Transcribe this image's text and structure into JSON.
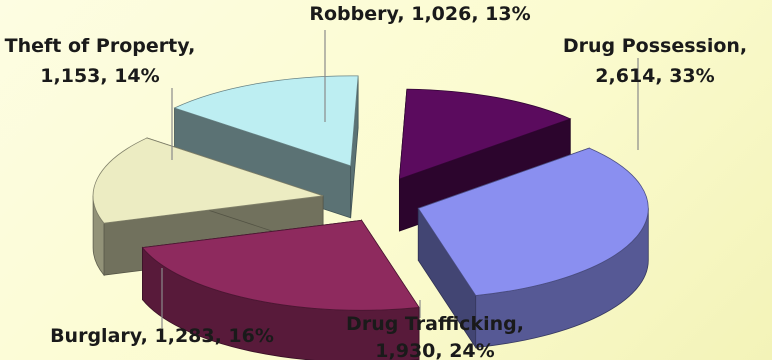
{
  "chart_data": {
    "type": "pie",
    "style": "3d-exploded",
    "slices": [
      {
        "name": "Drug Possession",
        "value": 2614,
        "percent": 33,
        "color": "#8a8ff0",
        "label_lines": [
          "Drug Possession,",
          "2,614, 33%"
        ]
      },
      {
        "name": "Drug Trafficking",
        "value": 1930,
        "percent": 24,
        "color": "#8e2a5e",
        "label_lines": [
          "Drug Trafficking,",
          "1,930, 24%"
        ]
      },
      {
        "name": "Burglary",
        "value": 1283,
        "percent": 16,
        "color": "#ececc2",
        "label_lines": [
          "Burglary, 1,283, 16%"
        ]
      },
      {
        "name": "Theft of Property",
        "value": 1153,
        "percent": 14,
        "color": "#bdeef2",
        "label_lines": [
          "Theft of Property,",
          "1,153, 14%"
        ]
      },
      {
        "name": "Robbery",
        "value": 1026,
        "percent": 13,
        "color": "#5b0b5e",
        "label_lines": [
          "Robbery, 1,026, 13%"
        ]
      }
    ]
  }
}
